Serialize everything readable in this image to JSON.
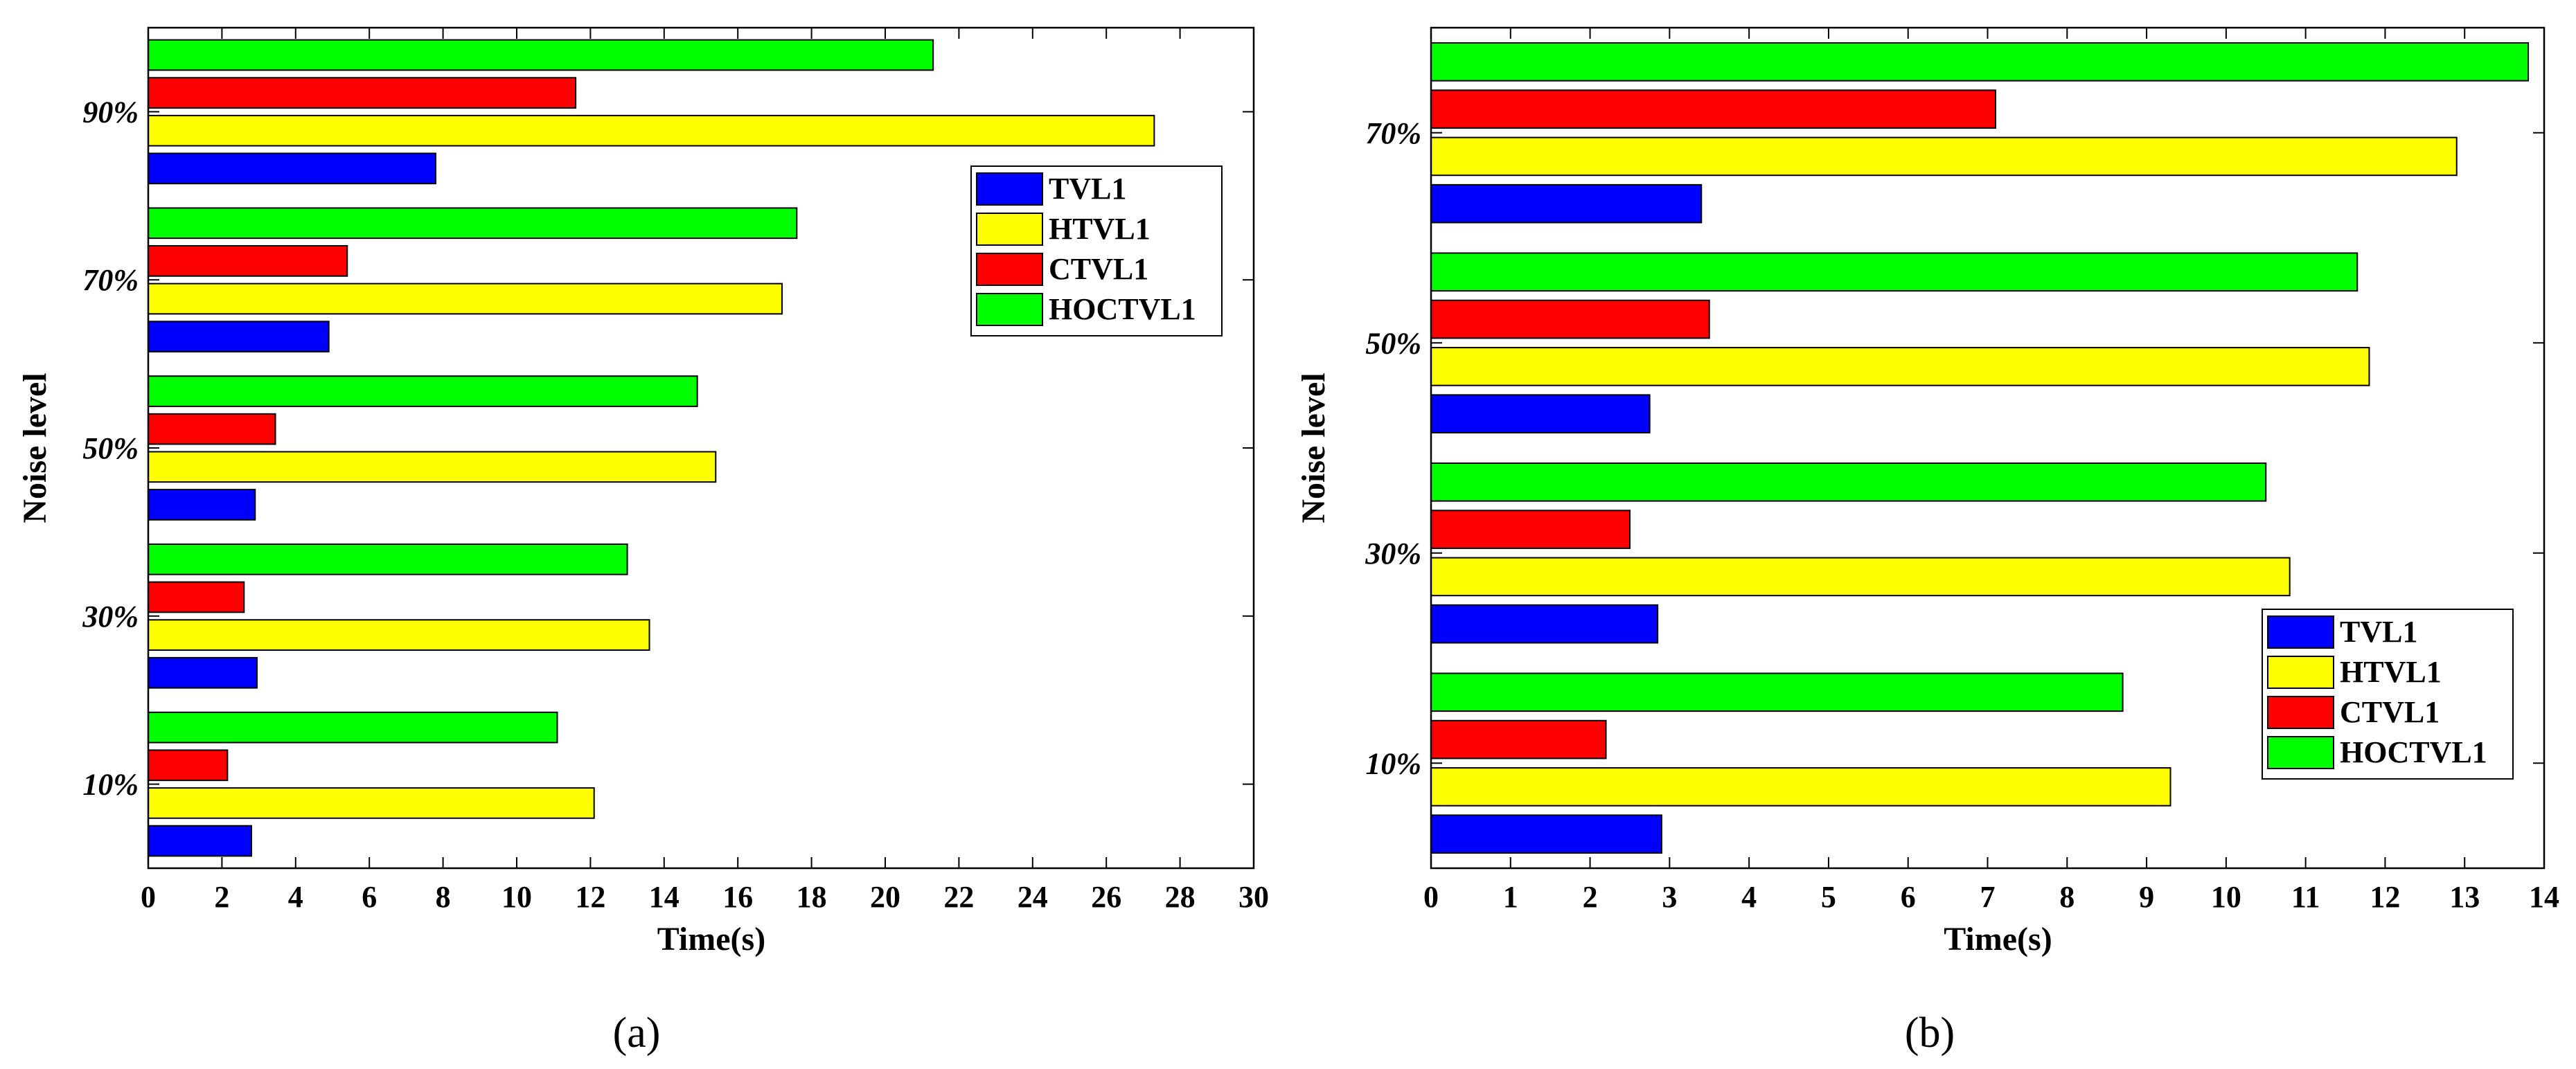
{
  "chart_data": [
    {
      "type": "bar",
      "orientation": "horizontal",
      "panel_label": "(a)",
      "xlabel": "Time(s)",
      "ylabel": "Noise level",
      "categories": [
        "10%",
        "30%",
        "50%",
        "70%",
        "90%"
      ],
      "xlim": [
        0,
        30
      ],
      "xticks": [
        0,
        2,
        4,
        6,
        8,
        10,
        12,
        14,
        16,
        18,
        20,
        22,
        24,
        26,
        28,
        30
      ],
      "legend_position": "upper-right",
      "series": [
        {
          "name": "TVL1",
          "color": "#0000ff",
          "values": [
            2.8,
            2.95,
            2.9,
            4.9,
            7.8
          ]
        },
        {
          "name": "HTVL1",
          "color": "#ffff00",
          "values": [
            12.1,
            13.6,
            15.4,
            17.2,
            27.3
          ]
        },
        {
          "name": "CTVL1",
          "color": "#ff0000",
          "values": [
            2.15,
            2.6,
            3.45,
            5.4,
            11.6
          ]
        },
        {
          "name": "HOCTVL1",
          "color": "#00ff00",
          "values": [
            11.1,
            13.0,
            14.9,
            17.6,
            21.3
          ]
        }
      ]
    },
    {
      "type": "bar",
      "orientation": "horizontal",
      "panel_label": "(b)",
      "xlabel": "Time(s)",
      "ylabel": "Noise level",
      "categories": [
        "10%",
        "30%",
        "50%",
        "70%"
      ],
      "xlim": [
        0,
        14
      ],
      "xticks": [
        0,
        1,
        2,
        3,
        4,
        5,
        6,
        7,
        8,
        9,
        10,
        11,
        12,
        13,
        14
      ],
      "legend_position": "lower-right",
      "series": [
        {
          "name": "TVL1",
          "color": "#0000ff",
          "values": [
            2.9,
            2.85,
            2.75,
            3.4
          ]
        },
        {
          "name": "HTVL1",
          "color": "#ffff00",
          "values": [
            9.3,
            10.8,
            11.8,
            12.9
          ]
        },
        {
          "name": "CTVL1",
          "color": "#ff0000",
          "values": [
            2.2,
            2.5,
            3.5,
            7.1
          ]
        },
        {
          "name": "HOCTVL1",
          "color": "#00ff00",
          "values": [
            8.7,
            10.5,
            11.65,
            13.8
          ]
        }
      ]
    }
  ]
}
